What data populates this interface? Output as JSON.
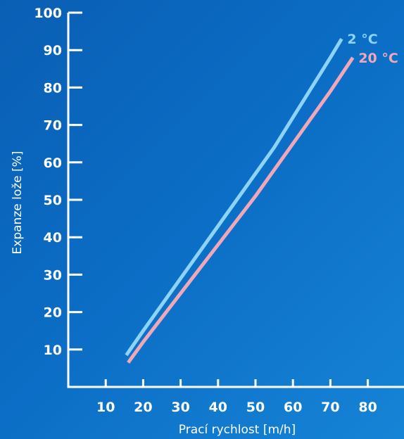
{
  "chart_data": {
    "type": "line",
    "xlabel": "Prací rychlost [m/h]",
    "ylabel": "Expanze lože [%]",
    "xlim": [
      0,
      90
    ],
    "ylim": [
      0,
      100
    ],
    "x_ticks": [
      10,
      20,
      30,
      40,
      50,
      60,
      70,
      80
    ],
    "y_ticks": [
      10,
      20,
      30,
      40,
      50,
      60,
      70,
      80,
      90,
      100
    ],
    "grid": false,
    "series": [
      {
        "name": "2 °C",
        "color": "#8dd3f6",
        "x": [
          15.5,
          20,
          25,
          30,
          35,
          40,
          45,
          50,
          55,
          60,
          65,
          70,
          73
        ],
        "y": [
          8.5,
          15,
          22,
          29,
          36,
          43,
          50,
          57,
          64,
          72,
          80,
          88,
          93
        ]
      },
      {
        "name": "20 °C",
        "color": "#f0a8b8",
        "x": [
          16,
          20,
          25,
          30,
          35,
          40,
          45,
          50,
          55,
          60,
          65,
          70,
          76
        ],
        "y": [
          6.5,
          12,
          18.5,
          25,
          31.5,
          38,
          44.5,
          51,
          58,
          65,
          72,
          79,
          88
        ]
      }
    ]
  }
}
